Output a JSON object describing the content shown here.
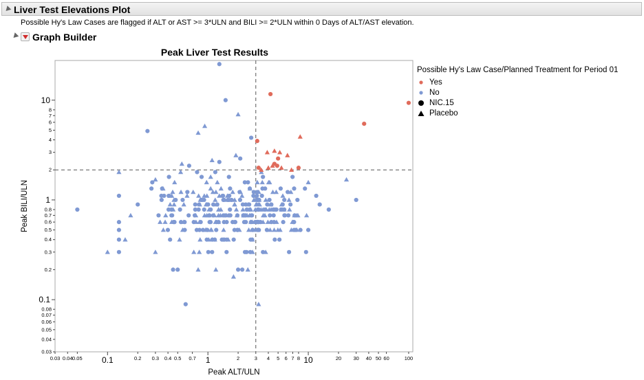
{
  "report": {
    "outline_title": "Liver Test Elevations Plot",
    "note": "Possible Hy's Law Cases are flagged if ALT or AST >= 3*ULN and BILI >= 2*ULN within 0 Days of ALT/AST elevation.",
    "graph_builder_title": "Graph Builder"
  },
  "legend": {
    "title": "Possible Hy's Law Case/Planned Treatment for Period 01",
    "items": [
      {
        "label": "Yes",
        "symbol": "dot",
        "color": "#e06b5b"
      },
      {
        "label": "No",
        "symbol": "dot",
        "color": "#7f99d3"
      },
      {
        "label": "NIC.15",
        "symbol": "circle",
        "color": "#000000"
      },
      {
        "label": "Placebo",
        "symbol": "triangle",
        "color": "#000000"
      }
    ]
  },
  "chart_data": {
    "type": "scatter",
    "title": "Peak Liver Test Results",
    "xlabel": "Peak ALT/ULN",
    "ylabel": "Peak BILI/ULN",
    "xscale": "log",
    "yscale": "log",
    "xlim": [
      0.03,
      110
    ],
    "ylim": [
      0.03,
      25
    ],
    "x_ticks": [
      "0.03",
      "0.04",
      "0.05",
      "0.1",
      "0.2",
      "0.3",
      "0.4",
      "0.5",
      "0.7",
      "1",
      "2",
      "3",
      "4",
      "5",
      "6",
      "7",
      "8",
      "10",
      "20",
      "30",
      "40",
      "50",
      "60",
      "100"
    ],
    "x_tick_values": [
      0.03,
      0.04,
      0.05,
      0.1,
      0.2,
      0.3,
      0.4,
      0.5,
      0.7,
      1,
      2,
      3,
      4,
      5,
      6,
      7,
      8,
      10,
      20,
      30,
      40,
      50,
      60,
      100
    ],
    "x_major": [
      "0.1",
      "1",
      "10"
    ],
    "y_ticks": [
      "0.03",
      "0.04",
      "0.05",
      "0.06",
      "0.07",
      "0.08",
      "0.1",
      "0.2",
      "0.3",
      "0.4",
      "0.5",
      "0.6",
      "0.7",
      "0.8",
      "1",
      "2",
      "3",
      "4",
      "5",
      "6",
      "7",
      "8",
      "10"
    ],
    "y_tick_values": [
      0.03,
      0.04,
      0.05,
      0.06,
      0.07,
      0.08,
      0.1,
      0.2,
      0.3,
      0.4,
      0.5,
      0.6,
      0.7,
      0.8,
      1,
      2,
      3,
      4,
      5,
      6,
      7,
      8,
      10
    ],
    "y_major": [
      "0.1",
      "1",
      "10"
    ],
    "reference_lines": {
      "x": 3,
      "y": 2
    },
    "colors": {
      "yes": "#e06b5b",
      "no": "#7f99d3"
    },
    "series": [
      {
        "name": "Yes",
        "points": [
          {
            "x": 4.2,
            "y": 11.5,
            "s": "c"
          },
          {
            "x": 100,
            "y": 9.4,
            "s": "c"
          },
          {
            "x": 36,
            "y": 5.8,
            "s": "c"
          },
          {
            "x": 3.1,
            "y": 3.9,
            "s": "c"
          },
          {
            "x": 8.3,
            "y": 4.3,
            "s": "t"
          },
          {
            "x": 3.9,
            "y": 3.0,
            "s": "t"
          },
          {
            "x": 4.6,
            "y": 3.1,
            "s": "t"
          },
          {
            "x": 5.2,
            "y": 3.0,
            "s": "t"
          },
          {
            "x": 6.2,
            "y": 2.8,
            "s": "t"
          },
          {
            "x": 5.0,
            "y": 2.6,
            "s": "c"
          },
          {
            "x": 4.6,
            "y": 2.3,
            "s": "c"
          },
          {
            "x": 4.4,
            "y": 2.2,
            "s": "t"
          },
          {
            "x": 4.9,
            "y": 2.2,
            "s": "c"
          },
          {
            "x": 4.0,
            "y": 2.1,
            "s": "t"
          },
          {
            "x": 3.2,
            "y": 2.1,
            "s": "c"
          },
          {
            "x": 5.4,
            "y": 2.1,
            "s": "t"
          },
          {
            "x": 6.8,
            "y": 2.0,
            "s": "t"
          },
          {
            "x": 8.0,
            "y": 2.1,
            "s": "c"
          },
          {
            "x": 3.4,
            "y": 2.0,
            "s": "t"
          }
        ]
      },
      {
        "name": "No",
        "points": [
          {
            "x": 1.3,
            "y": 23,
            "s": "c"
          },
          {
            "x": 1.5,
            "y": 10,
            "s": "c"
          },
          {
            "x": 2.0,
            "y": 7.2,
            "s": "t"
          },
          {
            "x": 0.25,
            "y": 4.9,
            "s": "c"
          },
          {
            "x": 0.8,
            "y": 4.7,
            "s": "t"
          },
          {
            "x": 0.93,
            "y": 5.5,
            "s": "t"
          },
          {
            "x": 2.7,
            "y": 4.2,
            "s": "c"
          },
          {
            "x": 1.9,
            "y": 2.8,
            "s": "t"
          },
          {
            "x": 2.1,
            "y": 2.6,
            "s": "c"
          },
          {
            "x": 1.1,
            "y": 2.5,
            "s": "t"
          },
          {
            "x": 1.3,
            "y": 2.4,
            "s": "c"
          },
          {
            "x": 0.65,
            "y": 2.2,
            "s": "c"
          },
          {
            "x": 0.55,
            "y": 2.3,
            "s": "t"
          },
          {
            "x": 0.13,
            "y": 1.9,
            "s": "t"
          },
          {
            "x": 0.05,
            "y": 0.8,
            "s": "c"
          },
          {
            "x": 0.13,
            "y": 1.1,
            "s": "c"
          },
          {
            "x": 0.1,
            "y": 0.3,
            "s": "t"
          },
          {
            "x": 0.13,
            "y": 0.3,
            "s": "c"
          },
          {
            "x": 0.13,
            "y": 0.4,
            "s": "c"
          },
          {
            "x": 0.15,
            "y": 0.4,
            "s": "t"
          },
          {
            "x": 0.13,
            "y": 0.5,
            "s": "c"
          },
          {
            "x": 0.13,
            "y": 0.6,
            "s": "c"
          },
          {
            "x": 0.17,
            "y": 0.7,
            "s": "t"
          },
          {
            "x": 0.2,
            "y": 0.9,
            "s": "c"
          },
          {
            "x": 0.6,
            "y": 0.09,
            "s": "c"
          },
          {
            "x": 3.2,
            "y": 0.09,
            "s": "t"
          },
          {
            "x": 30,
            "y": 1.0,
            "s": "c"
          },
          {
            "x": 24,
            "y": 1.6,
            "s": "t"
          },
          {
            "x": 16,
            "y": 0.8,
            "s": "c"
          },
          {
            "x": 0.45,
            "y": 0.2,
            "s": "c"
          },
          {
            "x": 0.5,
            "y": 0.2,
            "s": "c"
          },
          {
            "x": 0.8,
            "y": 0.2,
            "s": "t"
          },
          {
            "x": 1.2,
            "y": 0.2,
            "s": "t"
          },
          {
            "x": 2.0,
            "y": 0.2,
            "s": "c"
          },
          {
            "x": 2.2,
            "y": 0.2,
            "s": "c"
          },
          {
            "x": 2.5,
            "y": 0.2,
            "s": "t"
          },
          {
            "x": 10,
            "y": 1.5,
            "s": "t"
          },
          {
            "x": 12,
            "y": 1.1,
            "s": "c"
          },
          {
            "x": 13,
            "y": 0.9,
            "s": "c"
          },
          {
            "x": 9.5,
            "y": 0.3,
            "s": "c"
          },
          {
            "x": 10,
            "y": 0.5,
            "s": "c"
          },
          {
            "x": 0.3,
            "y": 1.6,
            "s": "t"
          },
          {
            "x": 0.35,
            "y": 1.3,
            "s": "c"
          },
          {
            "x": 1.8,
            "y": 0.17,
            "s": "t"
          },
          {
            "x": 0.3,
            "y": 0.3,
            "s": "t"
          }
        ]
      }
    ]
  }
}
